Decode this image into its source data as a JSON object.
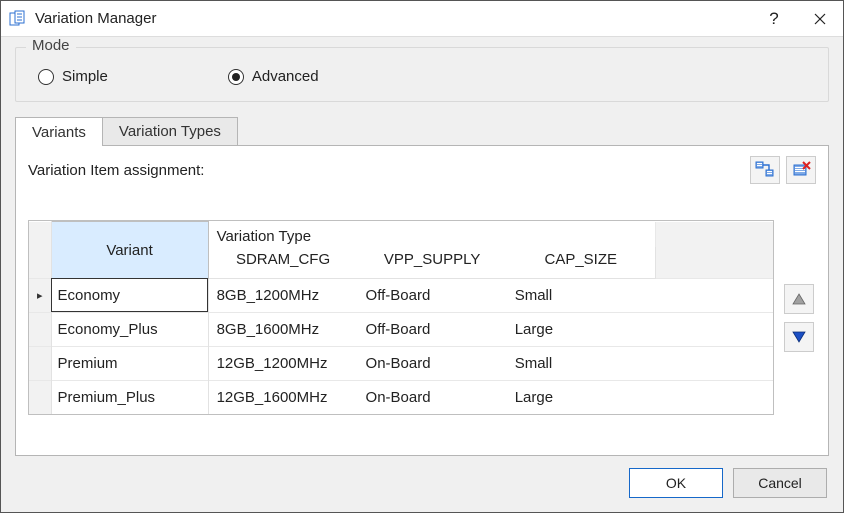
{
  "window": {
    "title": "Variation Manager",
    "help_symbol": "?",
    "close_symbol": "✕"
  },
  "mode": {
    "group_label": "Mode",
    "simple_label": "Simple",
    "advanced_label": "Advanced",
    "selected": "advanced"
  },
  "tabs": {
    "variants_label": "Variants",
    "variation_types_label": "Variation Types",
    "active": "variants"
  },
  "assign": {
    "label": "Variation Item assignment:"
  },
  "table": {
    "variant_header": "Variant",
    "vartype_super_header": "Variation Type",
    "columns": [
      "SDRAM_CFG",
      "VPP_SUPPLY",
      "CAP_SIZE"
    ],
    "rows": [
      {
        "variant": "Economy",
        "values": [
          "8GB_1200MHz",
          "Off-Board",
          "Small"
        ],
        "selected": true
      },
      {
        "variant": "Economy_Plus",
        "values": [
          "8GB_1600MHz",
          "Off-Board",
          "Large"
        ],
        "selected": false
      },
      {
        "variant": "Premium",
        "values": [
          "12GB_1200MHz",
          "On-Board",
          "Small"
        ],
        "selected": false
      },
      {
        "variant": "Premium_Plus",
        "values": [
          "12GB_1600MHz",
          "On-Board",
          "Large"
        ],
        "selected": false
      }
    ]
  },
  "footer": {
    "ok_label": "OK",
    "cancel_label": "Cancel"
  },
  "colors": {
    "variant_header_bg": "#d9ecff",
    "arrow_up_fill": "#a0a0a0",
    "arrow_down_fill": "#1b4fc4"
  }
}
